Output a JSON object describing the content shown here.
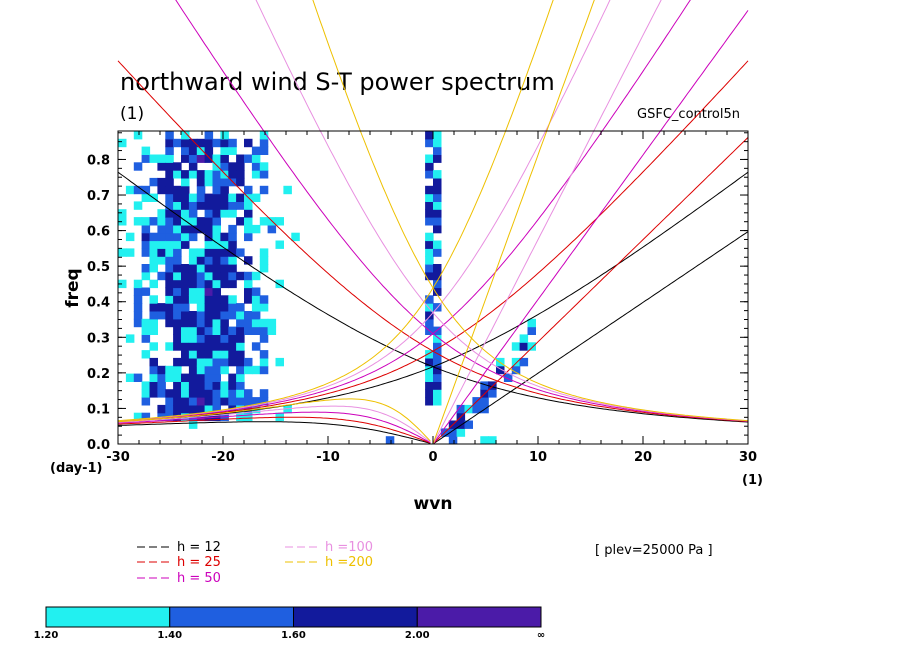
{
  "figure": {
    "title": "northward wind S-T power spectrum",
    "units_note": "(1)",
    "dataset": "GSFC_control5n",
    "info_box": "[ plev=25000 Pa ]"
  },
  "chart_data": {
    "type": "heatmap",
    "title": "northward wind S-T power spectrum",
    "xlabel": "wvn",
    "ylabel": "freq",
    "x_unit_label": "(1)",
    "y_unit_label": "(day-1)",
    "xlim": [
      -30,
      30
    ],
    "ylim": [
      0.0,
      0.88
    ],
    "x_ticks": [
      -30,
      -20,
      -10,
      0,
      10,
      20,
      30
    ],
    "y_ticks": [
      0.0,
      0.1,
      0.2,
      0.3,
      0.4,
      0.5,
      0.6,
      0.7,
      0.8
    ],
    "x_tick_labels": [
      "-30",
      "-20",
      "-10",
      "0",
      "10",
      "20",
      "30"
    ],
    "y_tick_labels": [
      "0.0",
      "0.1",
      "0.2",
      "0.3",
      "0.4",
      "0.5",
      "0.6",
      "0.7",
      "0.8"
    ],
    "contour_levels": [
      1.2,
      1.4,
      1.6,
      2.0
    ],
    "colorbar": {
      "labels": [
        "1.20",
        "1.40",
        "1.60",
        "2.00",
        "∞"
      ],
      "colors": [
        "#22f0f0",
        "#1f5fe0",
        "#121a9c",
        "#4b1ba8"
      ]
    },
    "dispersion_curves": [
      {
        "name": "h = 12",
        "equivalent_depth": 12,
        "color": "#000000"
      },
      {
        "name": "h = 25",
        "equivalent_depth": 25,
        "color": "#dd0000"
      },
      {
        "name": "h = 50",
        "equivalent_depth": 50,
        "color": "#cc00bb"
      },
      {
        "name": "h =100",
        "equivalent_depth": 100,
        "color": "#e890e0"
      },
      {
        "name": "h =200",
        "equivalent_depth": 200,
        "color": "#eec000"
      }
    ],
    "grid": false
  }
}
